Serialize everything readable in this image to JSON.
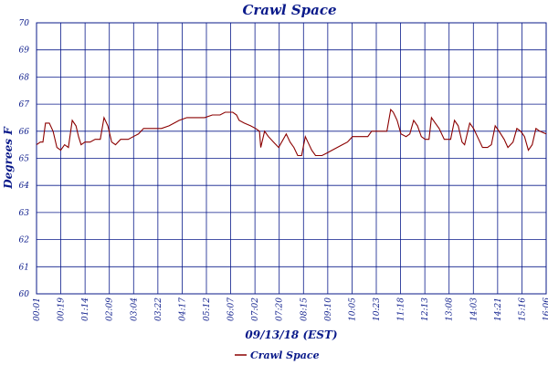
{
  "chart_data": {
    "type": "line",
    "title": "Crawl Space",
    "xlabel": "09/13/18 (EST)",
    "ylabel": "Degrees F",
    "ylim": [
      60,
      70
    ],
    "yticks": [
      "60",
      "61",
      "62",
      "63",
      "64",
      "65",
      "66",
      "67",
      "68",
      "69",
      "70"
    ],
    "xticks": [
      "00:01",
      "00:19",
      "01:14",
      "02:09",
      "03:04",
      "03:22",
      "04:17",
      "05:12",
      "06:07",
      "07:02",
      "07:20",
      "08:15",
      "09:10",
      "10:05",
      "10:23",
      "11:18",
      "12:13",
      "13:08",
      "14:03",
      "14:21",
      "15:16",
      "16:06"
    ],
    "grid": true,
    "legend": "bottom-center",
    "colors": {
      "series": "#8b0000",
      "text": "#0a1a8a",
      "grid": "#0a1a8a"
    },
    "series": [
      {
        "name": "Crawl Space",
        "values": [
          [
            0.0,
            65.5
          ],
          [
            0.3,
            65.6
          ],
          [
            0.5,
            65.6
          ],
          [
            0.7,
            66.3
          ],
          [
            1.0,
            66.3
          ],
          [
            1.3,
            66.0
          ],
          [
            1.6,
            65.4
          ],
          [
            1.9,
            65.3
          ],
          [
            2.2,
            65.5
          ],
          [
            2.5,
            65.4
          ],
          [
            2.8,
            66.4
          ],
          [
            3.1,
            66.2
          ],
          [
            3.3,
            65.8
          ],
          [
            3.5,
            65.5
          ],
          [
            3.8,
            65.6
          ],
          [
            4.2,
            65.6
          ],
          [
            4.6,
            65.7
          ],
          [
            5.0,
            65.7
          ],
          [
            5.3,
            66.5
          ],
          [
            5.6,
            66.2
          ],
          [
            5.9,
            65.6
          ],
          [
            6.2,
            65.5
          ],
          [
            6.6,
            65.7
          ],
          [
            7.2,
            65.7
          ],
          [
            7.6,
            65.8
          ],
          [
            8.0,
            65.9
          ],
          [
            8.4,
            66.1
          ],
          [
            9.0,
            66.1
          ],
          [
            9.8,
            66.1
          ],
          [
            10.4,
            66.2
          ],
          [
            10.8,
            66.3
          ],
          [
            11.2,
            66.4
          ],
          [
            11.8,
            66.5
          ],
          [
            12.6,
            66.5
          ],
          [
            13.2,
            66.5
          ],
          [
            13.8,
            66.6
          ],
          [
            14.4,
            66.6
          ],
          [
            14.8,
            66.7
          ],
          [
            15.4,
            66.7
          ],
          [
            15.7,
            66.6
          ],
          [
            15.9,
            66.4
          ],
          [
            16.3,
            66.3
          ],
          [
            16.8,
            66.2
          ],
          [
            17.2,
            66.1
          ],
          [
            17.5,
            66.0
          ],
          [
            17.6,
            65.4
          ],
          [
            17.9,
            66.0
          ],
          [
            18.2,
            65.8
          ],
          [
            18.6,
            65.6
          ],
          [
            19.0,
            65.4
          ],
          [
            19.6,
            65.9
          ],
          [
            19.9,
            65.6
          ],
          [
            20.2,
            65.4
          ],
          [
            20.5,
            65.1
          ],
          [
            20.8,
            65.1
          ],
          [
            21.1,
            65.8
          ],
          [
            21.3,
            65.6
          ],
          [
            21.6,
            65.3
          ],
          [
            21.9,
            65.1
          ],
          [
            22.4,
            65.1
          ],
          [
            22.8,
            65.2
          ],
          [
            23.2,
            65.3
          ],
          [
            23.6,
            65.4
          ],
          [
            24.0,
            65.5
          ],
          [
            24.4,
            65.6
          ],
          [
            24.8,
            65.8
          ],
          [
            25.4,
            65.8
          ],
          [
            26.0,
            65.8
          ],
          [
            26.3,
            66.0
          ],
          [
            27.0,
            66.0
          ],
          [
            27.5,
            66.0
          ],
          [
            27.8,
            66.8
          ],
          [
            28.0,
            66.7
          ],
          [
            28.3,
            66.4
          ],
          [
            28.6,
            65.9
          ],
          [
            29.0,
            65.8
          ],
          [
            29.3,
            65.9
          ],
          [
            29.6,
            66.4
          ],
          [
            29.9,
            66.2
          ],
          [
            30.2,
            65.8
          ],
          [
            30.5,
            65.7
          ],
          [
            30.8,
            65.7
          ],
          [
            31.0,
            66.5
          ],
          [
            31.3,
            66.3
          ],
          [
            31.6,
            66.1
          ],
          [
            32.0,
            65.7
          ],
          [
            32.5,
            65.7
          ],
          [
            32.8,
            66.4
          ],
          [
            33.1,
            66.2
          ],
          [
            33.4,
            65.6
          ],
          [
            33.6,
            65.5
          ],
          [
            34.0,
            66.3
          ],
          [
            34.3,
            66.1
          ],
          [
            34.7,
            65.7
          ],
          [
            35.0,
            65.4
          ],
          [
            35.4,
            65.4
          ],
          [
            35.7,
            65.5
          ],
          [
            36.0,
            66.2
          ],
          [
            36.3,
            66.0
          ],
          [
            36.7,
            65.7
          ],
          [
            37.0,
            65.4
          ],
          [
            37.4,
            65.6
          ],
          [
            37.7,
            66.1
          ],
          [
            38.0,
            66.0
          ],
          [
            38.3,
            65.8
          ],
          [
            38.6,
            65.3
          ],
          [
            38.9,
            65.5
          ],
          [
            39.2,
            66.1
          ],
          [
            39.5,
            66.0
          ],
          [
            40.0,
            65.9
          ]
        ]
      }
    ]
  }
}
